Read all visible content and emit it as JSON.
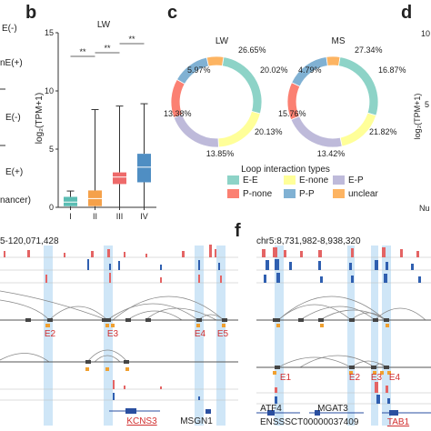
{
  "panels": {
    "a_left_labels": [
      "E(-)",
      "nE(+)",
      "E(-)",
      "E(+)",
      "nancer)"
    ],
    "b": {
      "letter": "b",
      "title": "LW"
    },
    "c": {
      "letter": "c",
      "legend_title": "Loop interaction types"
    },
    "d": {
      "letter": "d",
      "ylabel_partial": "log₂(TPM+1)",
      "tick_partial": "10",
      "tick_partial2": "5",
      "text_partial": "Nu"
    },
    "e": {
      "coord": "5-120,071,428",
      "loops": [
        "E2",
        "E3",
        "E4",
        "E5"
      ],
      "genes": [
        "KCNS3",
        "MSGN1"
      ]
    },
    "f": {
      "letter": "f",
      "coord": "chr5:8,731,982-8,938,320",
      "loops": [
        "E1",
        "E2",
        "E3",
        "E4"
      ],
      "genes": [
        "ATF4",
        "MGAT3",
        "ENSSSCT00000037409",
        "TAB1"
      ]
    }
  },
  "chart_data": [
    {
      "type": "box",
      "title": "LW",
      "ylabel": "log₂(TPM+1)",
      "ylim": [
        0,
        15
      ],
      "yticks": [
        0,
        5,
        10,
        15
      ],
      "categories": [
        "I",
        "II",
        "III",
        "IV"
      ],
      "colors": [
        "#5bbdb3",
        "#f5a14a",
        "#ee6a6a",
        "#4f8ec3"
      ],
      "boxes": [
        {
          "lower_whisker": 0.0,
          "q1": 0.1,
          "median": 0.45,
          "q3": 0.9,
          "upper_whisker": 1.4
        },
        {
          "lower_whisker": 0.0,
          "q1": 0.1,
          "median": 0.75,
          "q3": 1.45,
          "upper_whisker": 8.4
        },
        {
          "lower_whisker": 0.0,
          "q1": 2.0,
          "median": 2.6,
          "q3": 3.0,
          "upper_whisker": 8.7
        },
        {
          "lower_whisker": 0.0,
          "q1": 2.15,
          "median": 3.45,
          "q3": 4.6,
          "upper_whisker": 8.9
        }
      ],
      "significance": [
        {
          "from": "I",
          "to": "II",
          "label": "**"
        },
        {
          "from": "II",
          "to": "III",
          "label": "**"
        },
        {
          "from": "III",
          "to": "IV",
          "label": "**"
        }
      ]
    },
    {
      "type": "pie",
      "subtype": "donut",
      "legend_title": "Loop interaction types",
      "legend": [
        "E-E",
        "E-none",
        "E-P",
        "P-none",
        "P-P",
        "unclear"
      ],
      "colors": {
        "E-E": "#8dd3c7",
        "E-none": "#ffff99",
        "E-P": "#bebada",
        "P-none": "#fb8072",
        "P-P": "#80b1d3",
        "unclear": "#fdb462"
      },
      "donuts": [
        {
          "title": "LW",
          "slices": [
            {
              "type": "E-E",
              "value": 26.65,
              "label": "26.65%"
            },
            {
              "type": "E-none",
              "value": 20.02,
              "label": "20.02%"
            },
            {
              "type": "E-P",
              "value": 20.13,
              "label": "20.13%"
            },
            {
              "type": "P-none",
              "value": 13.85,
              "label": "13.85%"
            },
            {
              "type": "P-P",
              "value": 13.38,
              "label": "13.38%"
            },
            {
              "type": "unclear",
              "value": 5.97,
              "label": "5.97%"
            }
          ]
        },
        {
          "title": "MS",
          "slices": [
            {
              "type": "E-E",
              "value": 27.34,
              "label": "27.34%"
            },
            {
              "type": "E-none",
              "value": 16.87,
              "label": "16.87%"
            },
            {
              "type": "E-P",
              "value": 21.82,
              "label": "21.82%"
            },
            {
              "type": "P-none",
              "value": 13.42,
              "label": "13.42%"
            },
            {
              "type": "P-P",
              "value": 15.76,
              "label": "15.76%"
            },
            {
              "type": "unclear",
              "value": 4.79,
              "label": "4.79%"
            }
          ]
        }
      ]
    }
  ]
}
